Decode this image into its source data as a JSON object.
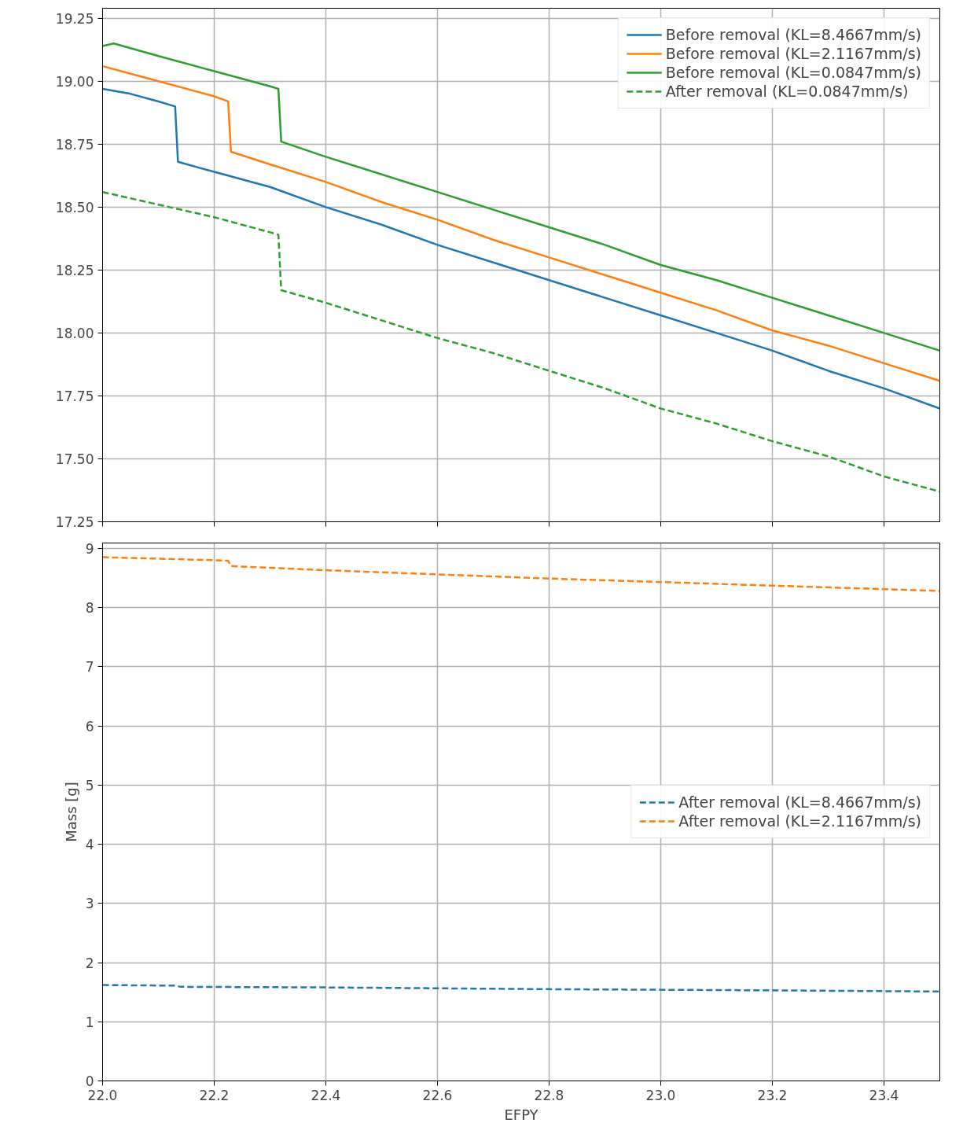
{
  "chart_data": [
    {
      "type": "line",
      "xlim": [
        22.0,
        23.5
      ],
      "ylim": [
        17.25,
        19.29
      ],
      "tick_labels": "y",
      "grid": true,
      "legend": "top right",
      "xticks": [
        {
          "value": 22.0,
          "label": null
        },
        {
          "value": 22.2,
          "label": null
        },
        {
          "value": 22.4,
          "label": null
        },
        {
          "value": 22.6,
          "label": null
        },
        {
          "value": 22.8,
          "label": null
        },
        {
          "value": 23.0,
          "label": null
        },
        {
          "value": 23.2,
          "label": null
        },
        {
          "value": 23.4,
          "label": null
        }
      ],
      "yticks": [
        17.25,
        {
          "value": 17.5,
          "label": "17.50"
        },
        17.75,
        {
          "value": 18.0,
          "label": "18.00"
        },
        18.25,
        {
          "value": 18.5,
          "label": "18.50"
        },
        18.75,
        {
          "value": 19.0,
          "label": "19.00"
        },
        19.25
      ],
      "series": [
        {
          "name": "Before removal (KL=8.4667mm/s)",
          "color": "#1f77b4",
          "line_style": "solid",
          "x": [
            22.0,
            22.05,
            22.1,
            22.13,
            22.135,
            22.2,
            22.3,
            22.4,
            22.5,
            22.6,
            22.7,
            22.8,
            22.9,
            23.0,
            23.1,
            23.2,
            23.3,
            23.4,
            23.5
          ],
          "values": [
            18.97,
            18.95,
            18.92,
            18.9,
            18.68,
            18.64,
            18.58,
            18.5,
            18.43,
            18.35,
            18.28,
            18.21,
            18.14,
            18.07,
            18.0,
            17.93,
            17.85,
            17.78,
            17.7
          ]
        },
        {
          "name": "Before removal (KL=2.1167mm/s)",
          "color": "#ff7f0e",
          "line_style": "solid",
          "x": [
            22.0,
            22.05,
            22.1,
            22.2,
            22.225,
            22.23,
            22.3,
            22.4,
            22.5,
            22.6,
            22.7,
            22.8,
            22.9,
            23.0,
            23.1,
            23.2,
            23.3,
            23.4,
            23.5
          ],
          "values": [
            19.06,
            19.03,
            19.0,
            18.94,
            18.92,
            18.72,
            18.67,
            18.6,
            18.52,
            18.45,
            18.37,
            18.3,
            18.23,
            18.16,
            18.09,
            18.01,
            17.95,
            17.88,
            17.81
          ]
        },
        {
          "name": "Before removal (KL=0.0847mm/s)",
          "color": "#2ca02c",
          "line_style": "solid",
          "x": [
            22.0,
            22.02,
            22.1,
            22.2,
            22.3,
            22.315,
            22.32,
            22.4,
            22.5,
            22.6,
            22.7,
            22.8,
            22.9,
            23.0,
            23.1,
            23.2,
            23.3,
            23.4,
            23.5
          ],
          "values": [
            19.14,
            19.15,
            19.1,
            19.04,
            18.98,
            18.97,
            18.76,
            18.7,
            18.63,
            18.56,
            18.49,
            18.42,
            18.35,
            18.27,
            18.21,
            18.14,
            18.07,
            18.0,
            17.93
          ]
        },
        {
          "name": "After removal (KL=0.0847mm/s)",
          "color": "#2ca02c",
          "line_style": "dashed",
          "x": [
            22.0,
            22.1,
            22.2,
            22.3,
            22.315,
            22.32,
            22.4,
            22.5,
            22.6,
            22.7,
            22.8,
            22.9,
            23.0,
            23.1,
            23.2,
            23.3,
            23.4,
            23.5
          ],
          "values": [
            18.56,
            18.51,
            18.46,
            18.4,
            18.39,
            18.17,
            18.12,
            18.05,
            17.98,
            17.92,
            17.85,
            17.78,
            17.7,
            17.64,
            17.57,
            17.51,
            17.43,
            17.37
          ]
        }
      ]
    },
    {
      "type": "line",
      "xlabel": "EFPY",
      "ylabel": "Mass [g]",
      "xlim": [
        22.0,
        23.5
      ],
      "ylim": [
        0,
        9.09
      ],
      "grid": true,
      "legend": "right",
      "xticks": [
        {
          "value": 22.0,
          "label": "22.0"
        },
        {
          "value": 22.2,
          "label": "22.2"
        },
        {
          "value": 22.4,
          "label": "22.4"
        },
        {
          "value": 22.6,
          "label": "22.6"
        },
        {
          "value": 22.8,
          "label": "22.8"
        },
        {
          "value": 23.0,
          "label": "23.0"
        },
        {
          "value": 23.2,
          "label": "23.2"
        },
        {
          "value": 23.4,
          "label": "23.4"
        }
      ],
      "yticks": [
        0,
        1,
        2,
        3,
        4,
        5,
        6,
        7,
        8,
        9
      ],
      "series": [
        {
          "name": "After removal (KL=8.4667mm/s)",
          "color": "#1f77b4",
          "line_style": "dashed",
          "x": [
            22.0,
            22.13,
            22.14,
            22.4,
            22.8,
            23.2,
            23.5
          ],
          "values": [
            1.62,
            1.61,
            1.59,
            1.58,
            1.55,
            1.53,
            1.51
          ]
        },
        {
          "name": "After removal (KL=2.1167mm/s)",
          "color": "#ff7f0e",
          "line_style": "dashed",
          "x": [
            22.0,
            22.2,
            22.225,
            22.23,
            22.4,
            22.6,
            22.8,
            23.0,
            23.2,
            23.4,
            23.5
          ],
          "values": [
            8.85,
            8.8,
            8.79,
            8.7,
            8.63,
            8.56,
            8.49,
            8.43,
            8.37,
            8.31,
            8.28
          ]
        }
      ]
    }
  ]
}
